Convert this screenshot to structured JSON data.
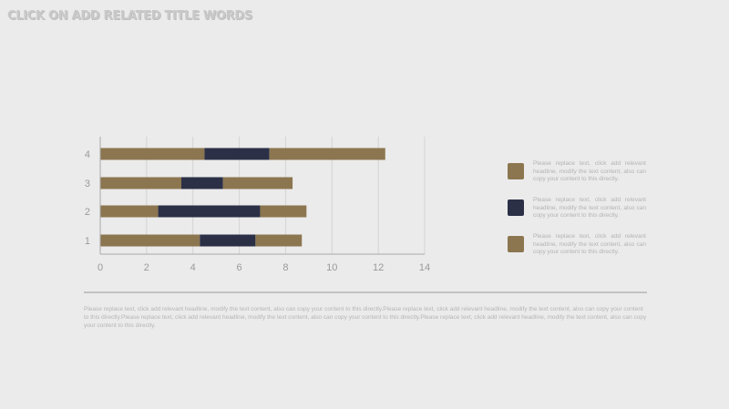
{
  "title": "CLICK ON ADD RELATED TITLE WORDS",
  "colors": {
    "gold": "#8c7650",
    "navy": "#2b3047",
    "background": "#ebebeb",
    "axis": "#a8a8a8"
  },
  "chart_data": {
    "type": "bar",
    "orientation": "horizontal",
    "stacked": true,
    "categories": [
      "1",
      "2",
      "3",
      "4"
    ],
    "series": [
      {
        "values": [
          4.3,
          2.5,
          3.5,
          4.5
        ],
        "color": "#8c7650"
      },
      {
        "values": [
          2.4,
          4.4,
          1.8,
          2.8
        ],
        "color": "#2b3047"
      },
      {
        "values": [
          2.0,
          2.0,
          3.0,
          5.0
        ],
        "color": "#8c7650"
      }
    ],
    "xlim": [
      0,
      14
    ],
    "xticks": [
      "0",
      "2",
      "4",
      "6",
      "8",
      "10",
      "12",
      "14"
    ],
    "grid": "vertical",
    "legend_position": "right",
    "title": "",
    "xlabel": "",
    "ylabel": ""
  },
  "legend": [
    {
      "text": "Please replace text, click add relevant headline, modify the text content, also can copy your content to this directly.",
      "color": "#8c7650"
    },
    {
      "text": "Please replace text, click add relevant headline, modify the text content, also can copy your content to this directly.",
      "color": "#2b3047"
    },
    {
      "text": "Please replace text, click add relevant headline, modify the text content, also can copy your content to this directly.",
      "color": "#8c7650"
    }
  ],
  "body_text": "Please replace text, click add relevant headline, modify the text content, also can copy your content to this directly.Please replace text, click add relevant headline, modify the text content, also can copy your content to this directly.Please replace text, click add relevant headline, modify the text content, also can copy your content to this directly.Please replace text, click add relevant headline, modify the text content, also can copy your content to this directly."
}
